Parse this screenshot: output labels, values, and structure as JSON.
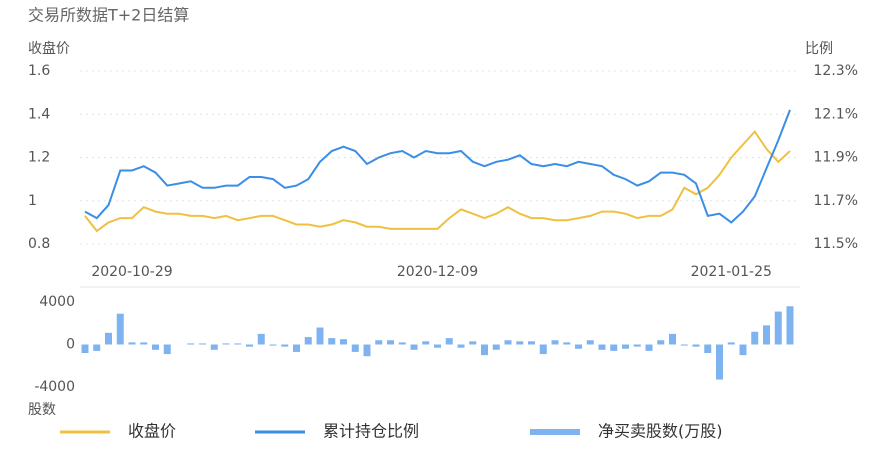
{
  "chart_data": [
    {
      "type": "line",
      "title": "交易所数据T+2日结算",
      "ylabel": "收盘价",
      "y2label": "比例",
      "categories": [
        null,
        null,
        null,
        null,
        "2020-10-29",
        null,
        null,
        null,
        null,
        null,
        null,
        null,
        null,
        null,
        null,
        null,
        null,
        null,
        null,
        null,
        null,
        null,
        null,
        null,
        null,
        null,
        null,
        null,
        null,
        null,
        "2020-12-09",
        null,
        null,
        null,
        null,
        null,
        null,
        null,
        null,
        null,
        null,
        null,
        null,
        null,
        null,
        null,
        null,
        null,
        null,
        null,
        null,
        null,
        null,
        null,
        null,
        "2021-01-25",
        null,
        null,
        null,
        null,
        null
      ],
      "series": [
        {
          "name": "收盘价",
          "color": "#f0c040",
          "values": [
            0.93,
            0.86,
            0.9,
            0.92,
            0.92,
            0.97,
            0.95,
            0.94,
            0.94,
            0.93,
            0.93,
            0.92,
            0.93,
            0.91,
            0.92,
            0.93,
            0.93,
            0.91,
            0.89,
            0.89,
            0.88,
            0.89,
            0.91,
            0.9,
            0.88,
            0.88,
            0.87,
            0.87,
            0.87,
            0.87,
            0.87,
            0.92,
            0.96,
            0.94,
            0.92,
            0.94,
            0.97,
            0.94,
            0.92,
            0.92,
            0.91,
            0.91,
            0.92,
            0.93,
            0.95,
            0.95,
            0.94,
            0.92,
            0.93,
            0.93,
            0.96,
            1.06,
            1.03,
            1.06,
            1.12,
            1.2,
            1.26,
            1.32,
            1.24,
            1.18,
            1.23
          ]
        },
        {
          "name": "累计持仓比例",
          "color": "#3a8ee6",
          "axis": "y2",
          "values": [
            11.65,
            11.62,
            11.68,
            11.84,
            11.84,
            11.86,
            11.83,
            11.77,
            11.78,
            11.79,
            11.76,
            11.76,
            11.77,
            11.77,
            11.81,
            11.81,
            11.8,
            11.76,
            11.77,
            11.8,
            11.88,
            11.93,
            11.95,
            11.93,
            11.87,
            11.9,
            11.92,
            11.93,
            11.9,
            11.93,
            11.92,
            11.92,
            11.93,
            11.88,
            11.86,
            11.88,
            11.89,
            11.91,
            11.87,
            11.86,
            11.87,
            11.86,
            11.88,
            11.87,
            11.86,
            11.82,
            11.8,
            11.77,
            11.79,
            11.83,
            11.83,
            11.82,
            11.78,
            11.63,
            11.64,
            11.6,
            11.65,
            11.72,
            11.85,
            11.98,
            12.12
          ]
        }
      ],
      "ylim": [
        0.8,
        1.6
      ],
      "yticks": [
        0.8,
        1,
        1.2,
        1.4,
        1.6
      ],
      "y2lim": [
        11.5,
        12.3
      ],
      "y2ticks": [
        {
          "value": 11.5,
          "label": "11.5%"
        },
        {
          "value": 11.7,
          "label": "11.7%"
        },
        {
          "value": 11.9,
          "label": "11.9%"
        },
        {
          "value": 12.1,
          "label": "12.1%"
        },
        {
          "value": 12.3,
          "label": "12.3%"
        }
      ],
      "grid": true
    },
    {
      "type": "bar",
      "ylabel": "股数",
      "series": [
        {
          "name": "净买卖股数(万股)",
          "color": "#7fb3f0",
          "values": [
            -800,
            -600,
            1100,
            2900,
            200,
            200,
            -500,
            -900,
            0,
            100,
            100,
            -500,
            100,
            100,
            -200,
            1000,
            -100,
            -200,
            -700,
            700,
            1600,
            600,
            500,
            -700,
            -1100,
            400,
            400,
            200,
            -500,
            300,
            -300,
            600,
            -300,
            300,
            -1000,
            -500,
            400,
            300,
            300,
            -900,
            400,
            200,
            -400,
            400,
            -500,
            -600,
            -400,
            -200,
            -600,
            400,
            1000,
            -100,
            -200,
            -800,
            -3300,
            200,
            -1000,
            1200,
            1800,
            3100,
            3600
          ]
        }
      ],
      "ylim": [
        -4000,
        4000
      ],
      "yticks": [
        -4000,
        0,
        4000
      ]
    }
  ]
}
